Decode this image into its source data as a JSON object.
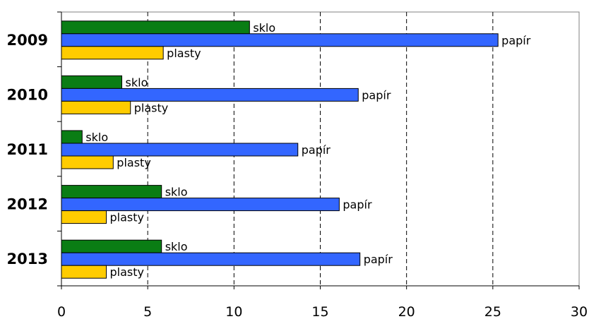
{
  "chart_data": {
    "type": "bar",
    "orientation": "horizontal",
    "categories": [
      "2009",
      "2010",
      "2011",
      "2012",
      "2013"
    ],
    "series": [
      {
        "name": "sklo",
        "color": "#0a7d14",
        "values": [
          10.9,
          3.5,
          1.2,
          5.8,
          5.8
        ]
      },
      {
        "name": "papír",
        "color": "#3366ff",
        "values": [
          25.3,
          17.2,
          13.7,
          16.1,
          17.3
        ]
      },
      {
        "name": "plasty",
        "color": "#ffcc00",
        "values": [
          5.9,
          4.0,
          3.0,
          2.6,
          2.6
        ]
      }
    ],
    "xlim": [
      0,
      30
    ],
    "xticks": [
      "0",
      "5",
      "10",
      "15",
      "20",
      "25",
      "30"
    ],
    "grid": "vertical-dashed",
    "legend": "none",
    "data_labels": "series-name"
  }
}
